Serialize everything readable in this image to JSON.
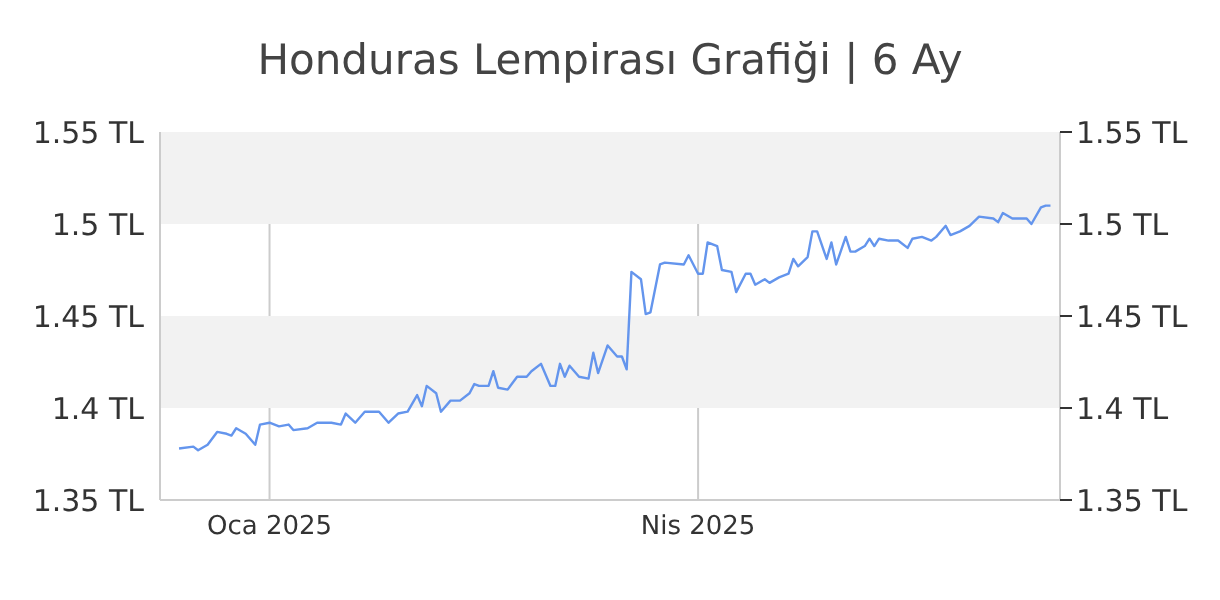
{
  "chart_data": {
    "type": "line",
    "title": "Honduras Lempirası Grafiği | 6 Ay",
    "x": [
      "2024-12-13",
      "2024-12-16",
      "2024-12-17",
      "2024-12-19",
      "2024-12-21",
      "2024-12-23",
      "2024-12-24",
      "2024-12-25",
      "2024-12-27",
      "2024-12-29",
      "2024-12-30",
      "2025-01-01",
      "2025-01-03",
      "2025-01-05",
      "2025-01-06",
      "2025-01-09",
      "2025-01-11",
      "2025-01-14",
      "2025-01-16",
      "2025-01-17",
      "2025-01-19",
      "2025-01-21",
      "2025-01-24",
      "2025-01-26",
      "2025-01-28",
      "2025-01-30",
      "2025-02-01",
      "2025-02-02",
      "2025-02-03",
      "2025-02-05",
      "2025-02-06",
      "2025-02-08",
      "2025-02-10",
      "2025-02-12",
      "2025-02-13",
      "2025-02-14",
      "2025-02-16",
      "2025-02-17",
      "2025-02-18",
      "2025-02-20",
      "2025-02-22",
      "2025-02-24",
      "2025-02-25",
      "2025-02-27",
      "2025-03-01",
      "2025-03-02",
      "2025-03-03",
      "2025-03-04",
      "2025-03-05",
      "2025-03-07",
      "2025-03-09",
      "2025-03-10",
      "2025-03-11",
      "2025-03-13",
      "2025-03-15",
      "2025-03-16",
      "2025-03-17",
      "2025-03-18",
      "2025-03-20",
      "2025-03-21",
      "2025-03-22",
      "2025-03-24",
      "2025-03-25",
      "2025-03-29",
      "2025-03-30",
      "2025-04-01",
      "2025-04-02",
      "2025-04-03",
      "2025-04-05",
      "2025-04-06",
      "2025-04-08",
      "2025-04-09",
      "2025-04-11",
      "2025-04-12",
      "2025-04-13",
      "2025-04-15",
      "2025-04-16",
      "2025-04-18",
      "2025-04-20",
      "2025-04-21",
      "2025-04-22",
      "2025-04-24",
      "2025-04-25",
      "2025-04-26",
      "2025-04-28",
      "2025-04-29",
      "2025-04-30",
      "2025-05-02",
      "2025-05-03",
      "2025-05-04",
      "2025-05-06",
      "2025-05-07",
      "2025-05-08",
      "2025-05-09",
      "2025-05-11",
      "2025-05-13",
      "2025-05-15",
      "2025-05-16",
      "2025-05-18",
      "2025-05-20",
      "2025-05-21",
      "2025-05-23",
      "2025-05-24",
      "2025-05-26",
      "2025-05-28",
      "2025-05-30",
      "2025-06-02",
      "2025-06-03",
      "2025-06-04",
      "2025-06-06",
      "2025-06-09",
      "2025-06-10",
      "2025-06-12",
      "2025-06-13",
      "2025-06-14"
    ],
    "series": [
      {
        "color": "#6495ed",
        "values": [
          1.378,
          1.379,
          1.377,
          1.38,
          1.387,
          1.386,
          1.385,
          1.389,
          1.386,
          1.38,
          1.391,
          1.392,
          1.39,
          1.391,
          1.388,
          1.389,
          1.392,
          1.392,
          1.391,
          1.397,
          1.392,
          1.398,
          1.398,
          1.392,
          1.397,
          1.398,
          1.407,
          1.401,
          1.412,
          1.408,
          1.398,
          1.404,
          1.404,
          1.408,
          1.413,
          1.412,
          1.412,
          1.42,
          1.411,
          1.41,
          1.417,
          1.417,
          1.42,
          1.424,
          1.412,
          1.412,
          1.424,
          1.417,
          1.423,
          1.417,
          1.416,
          1.43,
          1.419,
          1.434,
          1.428,
          1.428,
          1.421,
          1.474,
          1.47,
          1.451,
          1.452,
          1.478,
          1.479,
          1.478,
          1.483,
          1.473,
          1.473,
          1.49,
          1.488,
          1.475,
          1.474,
          1.463,
          1.473,
          1.473,
          1.467,
          1.47,
          1.468,
          1.471,
          1.473,
          1.481,
          1.477,
          1.482,
          1.496,
          1.496,
          1.481,
          1.49,
          1.478,
          1.493,
          1.485,
          1.485,
          1.488,
          1.492,
          1.488,
          1.492,
          1.491,
          1.491,
          1.487,
          1.492,
          1.493,
          1.491,
          1.493,
          1.499,
          1.494,
          1.496,
          1.499,
          1.504,
          1.503,
          1.501,
          1.506,
          1.503,
          1.503,
          1.5,
          1.509,
          1.51,
          1.51
        ]
      }
    ],
    "xlim": [
      "2024-12-09",
      "2025-06-16"
    ],
    "xticks": [
      {
        "value": "2025-01-01",
        "label": "Oca 2025"
      },
      {
        "value": "2025-04-01",
        "label": "Nis 2025"
      }
    ],
    "ylim": [
      1.35,
      1.55
    ],
    "yticks": [
      {
        "value": 1.35,
        "label": "1.35 TL"
      },
      {
        "value": 1.4,
        "label": "1.4 TL"
      },
      {
        "value": 1.45,
        "label": "1.45 TL"
      },
      {
        "value": 1.5,
        "label": "1.5 TL"
      },
      {
        "value": 1.55,
        "label": "1.55 TL"
      }
    ],
    "y2lim": [
      1.35,
      1.55
    ],
    "y2ticks": [
      {
        "value": 1.35,
        "label": "1.35 TL"
      },
      {
        "value": 1.4,
        "label": "1.4 TL"
      },
      {
        "value": 1.45,
        "label": "1.45 TL"
      },
      {
        "value": 1.5,
        "label": "1.5 TL"
      },
      {
        "value": 1.55,
        "label": "1.55 TL"
      }
    ],
    "bands": [
      {
        "axis": "y",
        "from": 1.4,
        "to": 1.45,
        "color": "#f2f2f2"
      },
      {
        "axis": "y",
        "from": 1.5,
        "to": 1.55,
        "color": "#f2f2f2"
      }
    ],
    "grid": "x",
    "marker": "none",
    "line_style": "solid"
  }
}
